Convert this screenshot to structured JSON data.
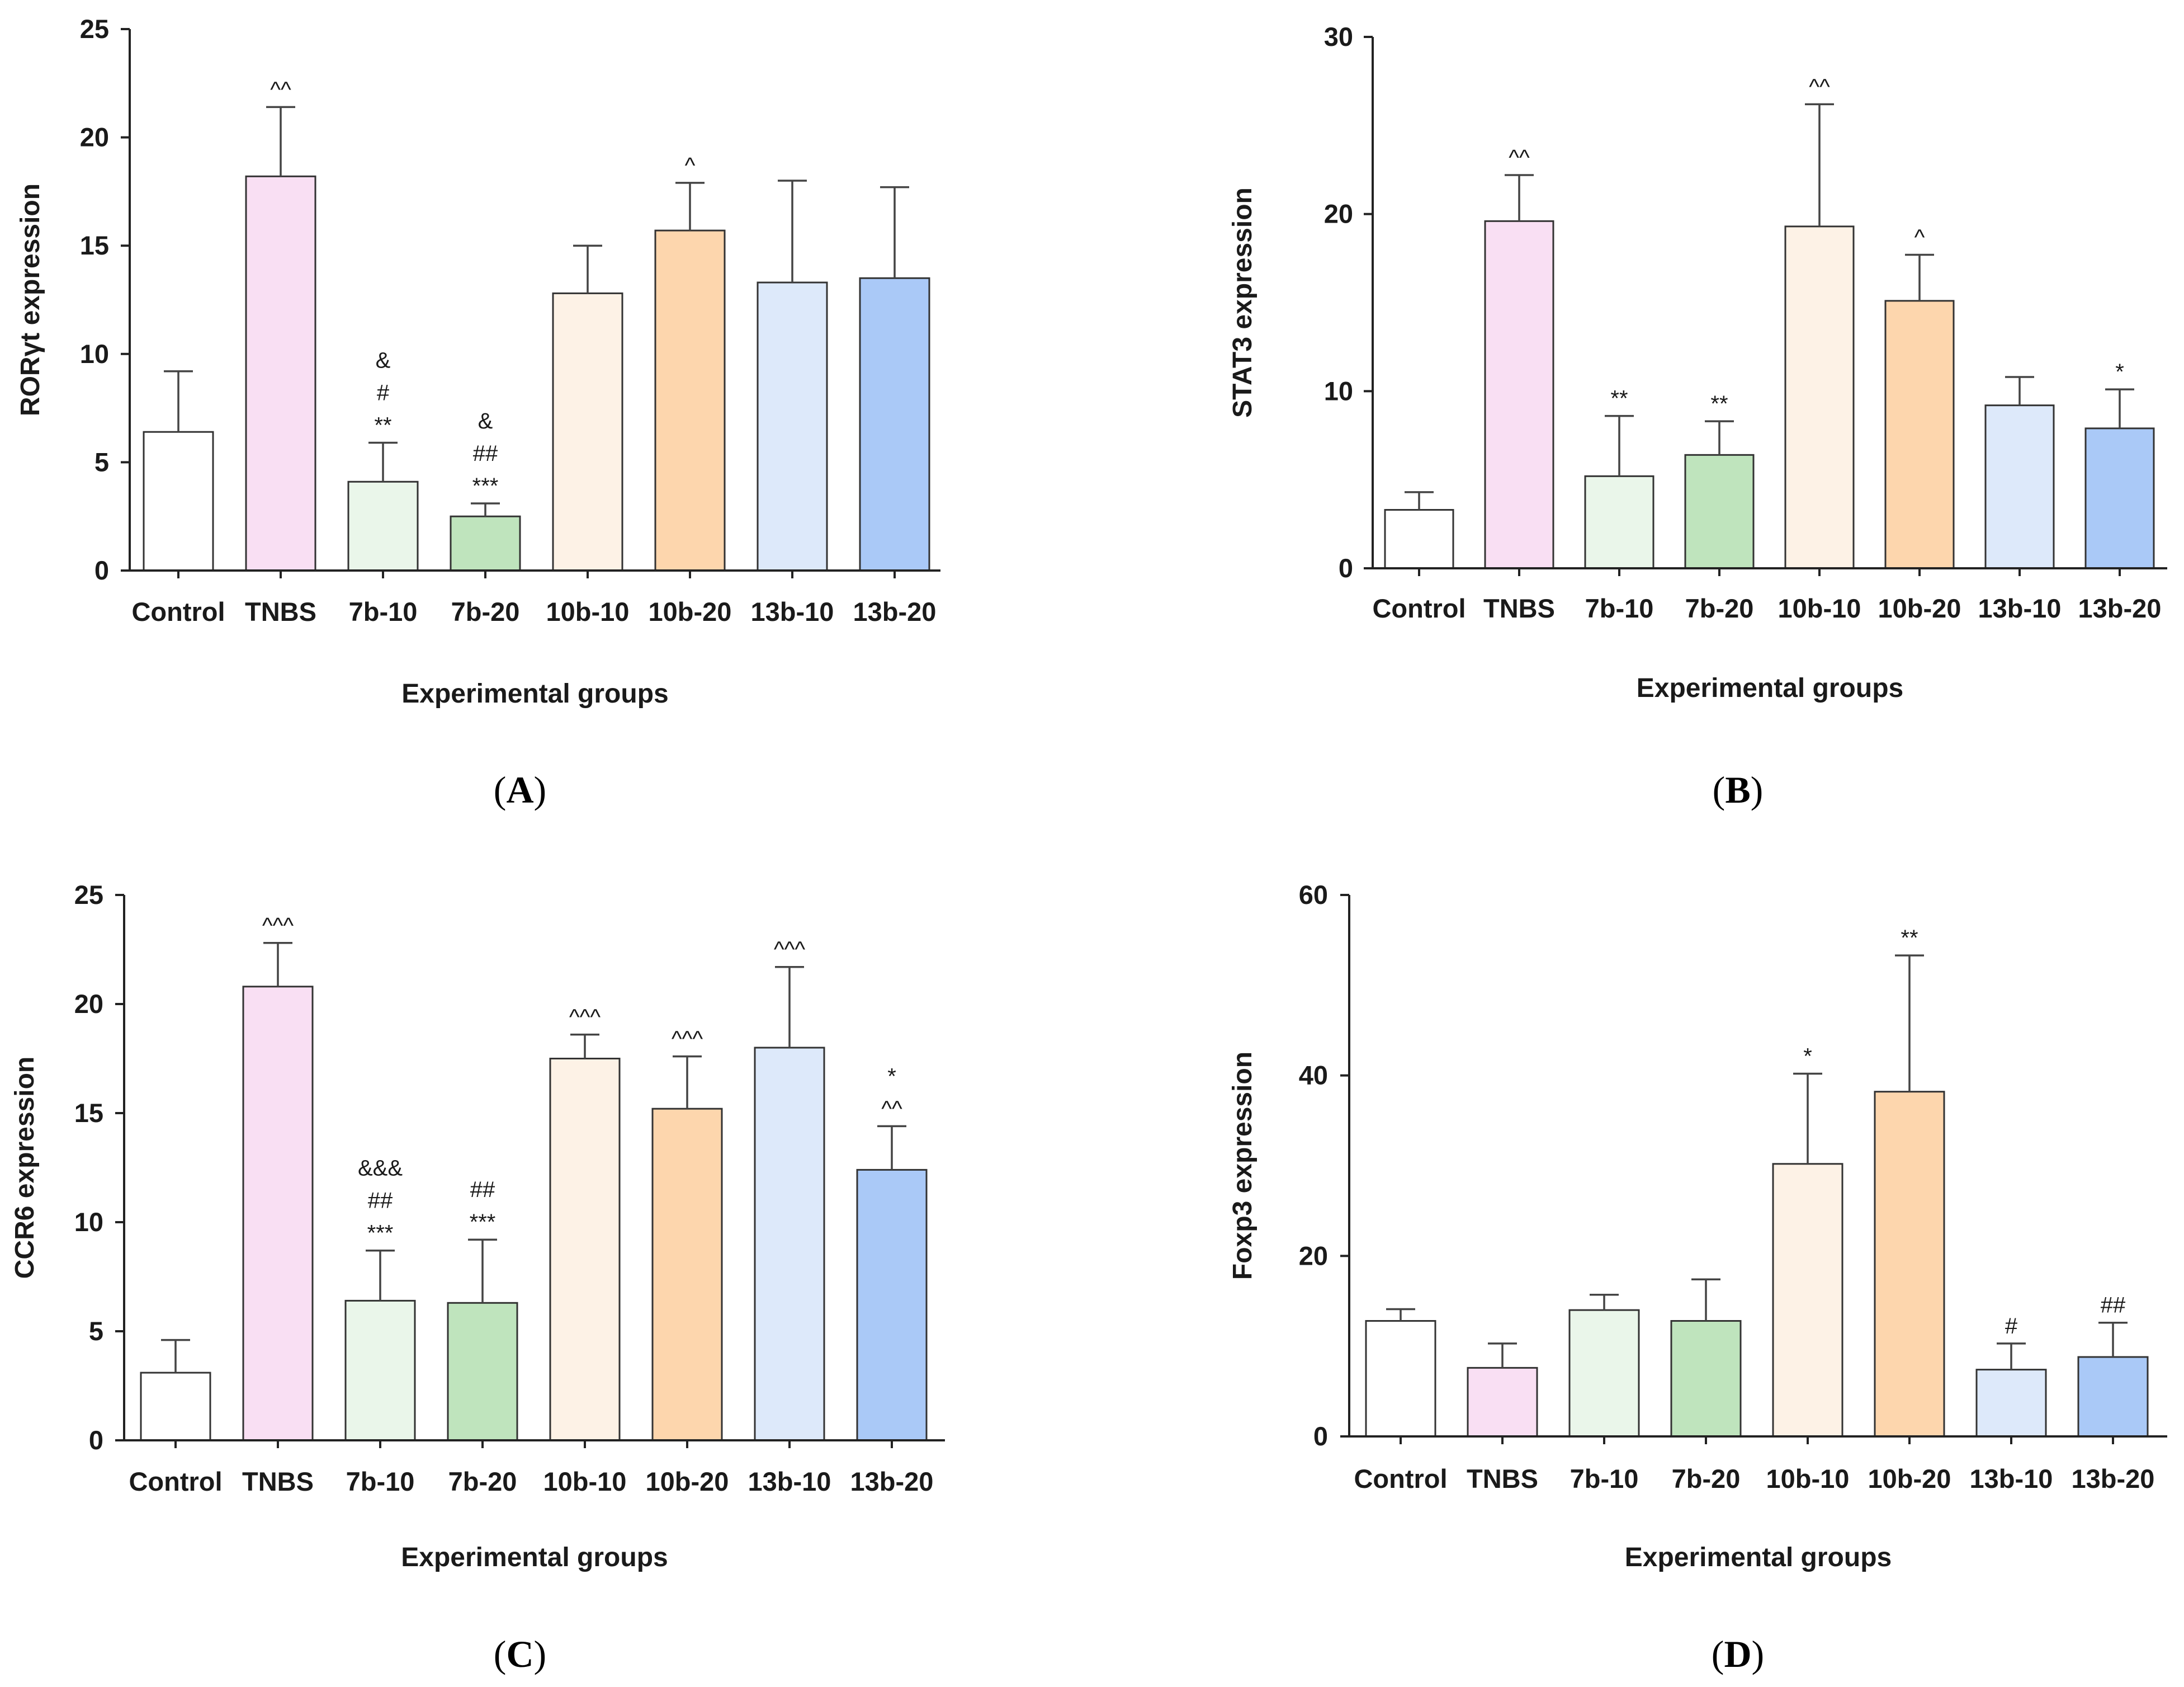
{
  "chart_data": [
    {
      "type": "bar",
      "panel": "A",
      "ylabel": "RORγt expression",
      "xlabel": "Experimental groups",
      "ylim": [
        0,
        25
      ],
      "yticks": [
        0,
        5,
        10,
        15,
        20,
        25
      ],
      "categories": [
        "Control",
        "TNBS",
        "7b-10",
        "7b-20",
        "10b-10",
        "10b-20",
        "13b-10",
        "13b-20"
      ],
      "values": [
        6.4,
        18.2,
        4.1,
        2.5,
        12.8,
        15.7,
        13.3,
        13.5
      ],
      "errors": [
        2.8,
        3.2,
        1.8,
        0.6,
        2.2,
        2.2,
        4.7,
        4.2
      ],
      "annotations": [
        [],
        [
          "^^"
        ],
        [
          "**",
          "#",
          "&"
        ],
        [
          "***",
          "##",
          "&"
        ],
        [],
        [
          "^"
        ],
        [],
        []
      ]
    },
    {
      "type": "bar",
      "panel": "B",
      "ylabel": "STAT3 expression",
      "xlabel": "Experimental groups",
      "ylim": [
        0,
        30
      ],
      "yticks": [
        0,
        10,
        20,
        30
      ],
      "categories": [
        "Control",
        "TNBS",
        "7b-10",
        "7b-20",
        "10b-10",
        "10b-20",
        "13b-10",
        "13b-20"
      ],
      "values": [
        3.3,
        19.6,
        5.2,
        6.4,
        19.3,
        15.1,
        9.2,
        7.9
      ],
      "errors": [
        1.0,
        2.6,
        3.4,
        1.9,
        6.9,
        2.6,
        1.6,
        2.2
      ],
      "annotations": [
        [],
        [
          "^^"
        ],
        [
          "**"
        ],
        [
          "**"
        ],
        [
          "^^"
        ],
        [
          "^"
        ],
        [],
        [
          "*"
        ]
      ]
    },
    {
      "type": "bar",
      "panel": "C",
      "ylabel": "CCR6 expression",
      "xlabel": "Experimental groups",
      "ylim": [
        0,
        25
      ],
      "yticks": [
        0,
        5,
        10,
        15,
        20,
        25
      ],
      "categories": [
        "Control",
        "TNBS",
        "7b-10",
        "7b-20",
        "10b-10",
        "10b-20",
        "13b-10",
        "13b-20"
      ],
      "values": [
        3.1,
        20.8,
        6.4,
        6.3,
        17.5,
        15.2,
        18.0,
        12.4
      ],
      "errors": [
        1.5,
        2.0,
        2.3,
        2.9,
        1.1,
        2.4,
        3.7,
        2.0
      ],
      "annotations": [
        [],
        [
          "^^^"
        ],
        [
          "***",
          "##",
          "&&&"
        ],
        [
          "***",
          "##"
        ],
        [
          "^^^"
        ],
        [
          "^^^"
        ],
        [
          "^^^"
        ],
        [
          "^^",
          "*"
        ]
      ]
    },
    {
      "type": "bar",
      "panel": "D",
      "ylabel": "Foxp3 expression",
      "xlabel": "Experimental groups",
      "ylim": [
        0,
        60
      ],
      "yticks": [
        0,
        20,
        40,
        60
      ],
      "categories": [
        "Control",
        "TNBS",
        "7b-10",
        "7b-20",
        "10b-10",
        "10b-20",
        "13b-10",
        "13b-20"
      ],
      "values": [
        12.8,
        7.6,
        14.0,
        12.8,
        30.2,
        38.2,
        7.4,
        8.8
      ],
      "errors": [
        1.3,
        2.7,
        1.7,
        4.6,
        10.0,
        15.1,
        2.9,
        3.8
      ],
      "annotations": [
        [],
        [],
        [],
        [],
        [
          "*"
        ],
        [
          "**"
        ],
        [
          "#"
        ],
        [
          "##"
        ]
      ]
    }
  ],
  "bar_colors": [
    "#ffffff",
    "#f9dff3",
    "#eaf6ea",
    "#bfe4bd",
    "#fdf2e6",
    "#fdd6ad",
    "#dde9fa",
    "#aac9f7"
  ],
  "captions": [
    {
      "open": "(",
      "letter": "A",
      "close": ")"
    },
    {
      "open": "(",
      "letter": "B",
      "close": ")"
    },
    {
      "open": "(",
      "letter": "C",
      "close": ")"
    },
    {
      "open": "(",
      "letter": "D",
      "close": ")"
    }
  ]
}
